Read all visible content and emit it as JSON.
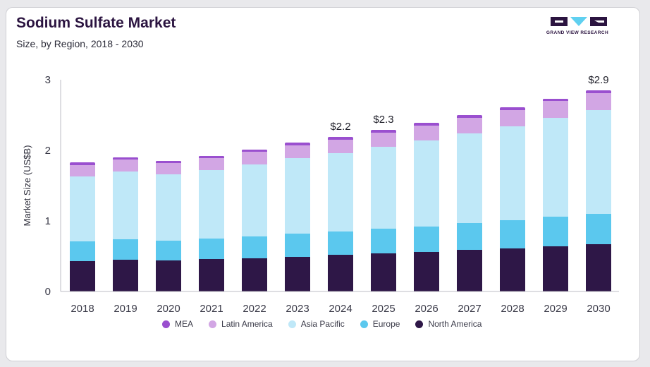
{
  "header": {
    "title": "Sodium Sulfate Market",
    "subtitle": "Size, by Region, 2018 - 2030"
  },
  "logo": {
    "text": "GRAND VIEW RESEARCH",
    "colors": [
      "#2b1440",
      "#5fd0f0",
      "#2b1440"
    ]
  },
  "chart_data": {
    "type": "bar",
    "stacked": true,
    "title": "Sodium Sulfate Market",
    "subtitle": "Size, by Region, 2018 - 2030",
    "xlabel": "",
    "ylabel": "Market Size (US$B)",
    "ylim": [
      0,
      3
    ],
    "yticks": [
      0,
      1,
      2,
      3
    ],
    "grid": false,
    "legend_position": "bottom",
    "categories": [
      "2018",
      "2019",
      "2020",
      "2021",
      "2022",
      "2023",
      "2024",
      "2025",
      "2026",
      "2027",
      "2028",
      "2029",
      "2030"
    ],
    "series": [
      {
        "name": "North America",
        "color": "#2e1747",
        "values": [
          0.43,
          0.45,
          0.44,
          0.46,
          0.47,
          0.49,
          0.52,
          0.54,
          0.56,
          0.59,
          0.61,
          0.64,
          0.67
        ]
      },
      {
        "name": "Europe",
        "color": "#5bc8ee",
        "values": [
          0.28,
          0.29,
          0.28,
          0.29,
          0.31,
          0.33,
          0.33,
          0.35,
          0.36,
          0.38,
          0.4,
          0.42,
          0.43
        ]
      },
      {
        "name": "Asia Pacific",
        "color": "#bfe8f8",
        "values": [
          0.92,
          0.96,
          0.94,
          0.97,
          1.02,
          1.07,
          1.11,
          1.16,
          1.22,
          1.27,
          1.33,
          1.4,
          1.47
        ]
      },
      {
        "name": "Latin America",
        "color": "#d2a6e4",
        "values": [
          0.16,
          0.17,
          0.16,
          0.17,
          0.18,
          0.18,
          0.19,
          0.2,
          0.21,
          0.22,
          0.23,
          0.24,
          0.24
        ]
      },
      {
        "name": "MEA",
        "color": "#9a4fcf",
        "values": [
          0.04,
          0.03,
          0.03,
          0.03,
          0.03,
          0.04,
          0.04,
          0.04,
          0.04,
          0.04,
          0.04,
          0.03,
          0.04
        ]
      }
    ],
    "legend_order": [
      "MEA",
      "Latin America",
      "Asia Pacific",
      "Europe",
      "North America"
    ],
    "annotations": [
      {
        "category": "2024",
        "label": "$2.2"
      },
      {
        "category": "2025",
        "label": "$2.3"
      },
      {
        "category": "2030",
        "label": "$2.9"
      }
    ]
  }
}
